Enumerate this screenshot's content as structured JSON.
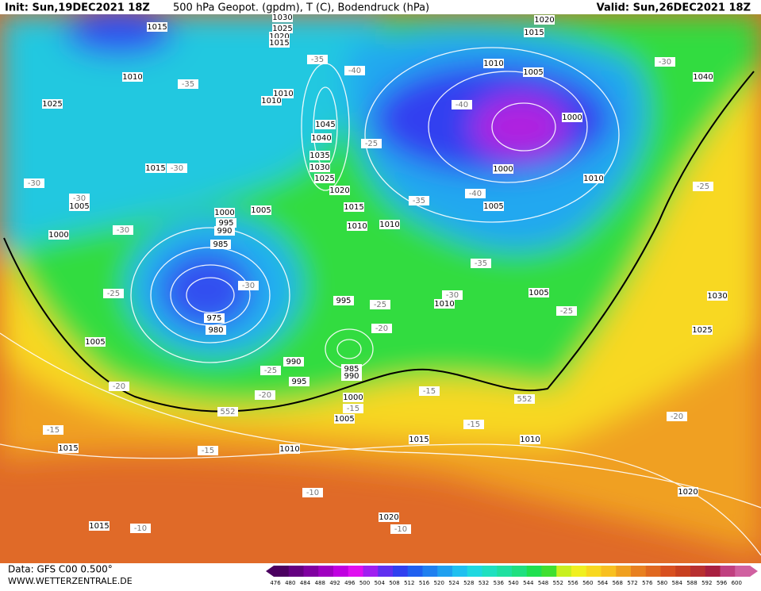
{
  "header": {
    "init": "Init: Sun,19DEC2021 18Z",
    "title": "500 hPa Geopot. (gpdm), T (C), Bodendruck (hPa)",
    "valid": "Valid: Sun,26DEC2021 18Z"
  },
  "footer": {
    "data": "Data: GFS C00 0.500°",
    "site": "WWW.WETTERZENTRALE.DE"
  },
  "isobar_labels": [
    1030,
    1015,
    1025,
    1020,
    1015,
    1020,
    1015,
    1010,
    1025,
    1010,
    1005,
    1010,
    1010,
    1000,
    1045,
    1040,
    1035,
    1030,
    1025,
    1015,
    1000,
    1010,
    1020,
    1005,
    1005,
    1015,
    1005,
    1000,
    995,
    990,
    1000,
    1010,
    1010,
    985,
    1040,
    975,
    980,
    995,
    1010,
    1005,
    1030,
    1025,
    1005,
    990,
    985,
    990,
    995,
    1000,
    1005,
    1015,
    1010,
    1015,
    1010,
    1020,
    1015,
    1020
  ],
  "temperature_labels": [
    -35,
    -40,
    -35,
    -30,
    -30,
    -30,
    -30,
    -25,
    -40,
    -40,
    -35,
    -35,
    -30,
    -25,
    -25,
    -30,
    -25,
    -20,
    -30,
    -25,
    -25,
    -20,
    -20,
    -15,
    -15,
    -15,
    -15,
    -20,
    -15,
    -10,
    -10,
    -10,
    552,
    552
  ],
  "colorbar": {
    "values": [
      476,
      480,
      484,
      488,
      492,
      496,
      500,
      504,
      508,
      512,
      516,
      520,
      524,
      528,
      532,
      536,
      540,
      544,
      548,
      552,
      556,
      560,
      564,
      568,
      572,
      576,
      580,
      584,
      588,
      592,
      596,
      600
    ],
    "colors": [
      "#4b0060",
      "#640080",
      "#8000a0",
      "#a000c0",
      "#c000e0",
      "#e010f0",
      "#a020f0",
      "#6030f0",
      "#3040f0",
      "#2060f0",
      "#2080f0",
      "#20a0f0",
      "#20c0f0",
      "#20d8e0",
      "#20e0c0",
      "#20e0a0",
      "#20e080",
      "#20e050",
      "#40e030",
      "#c8f020",
      "#f0f020",
      "#f8d820",
      "#f8c020",
      "#f0a020",
      "#e88020",
      "#e06820",
      "#d85020",
      "#c84020",
      "#b83030",
      "#a82040",
      "#c04080",
      "#d060a0"
    ]
  }
}
